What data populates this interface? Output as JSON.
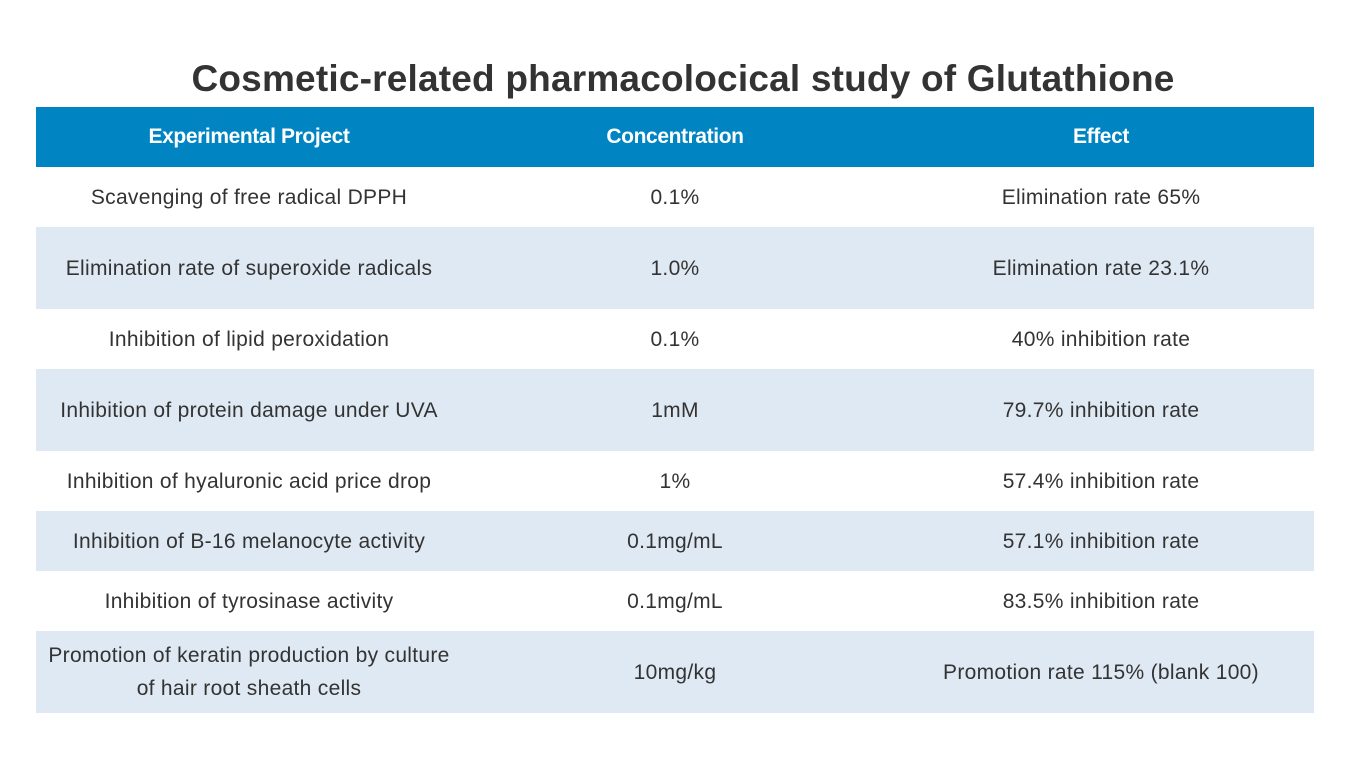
{
  "title": "Cosmetic-related pharmacolocical study of Glutathione",
  "table": {
    "headers": [
      "Experimental Project",
      "Concentration",
      "Effect"
    ],
    "rows": [
      [
        "Scavenging of free radical DPPH",
        "0.1%",
        "Elimination rate 65%"
      ],
      [
        "Elimination rate of superoxide radicals",
        "1.0%",
        "Elimination rate 23.1%"
      ],
      [
        "Inhibition of lipid peroxidation",
        "0.1%",
        "40% inhibition rate"
      ],
      [
        "Inhibition of protein damage under UVA",
        "1mM",
        "79.7% inhibition rate"
      ],
      [
        "Inhibition of hyaluronic acid price drop",
        "1%",
        "57.4% inhibition rate"
      ],
      [
        "Inhibition of B-16 melanocyte activity",
        "0.1mg/mL",
        "57.1% inhibition rate"
      ],
      [
        "Inhibition of tyrosinase activity",
        "0.1mg/mL",
        "83.5% inhibition rate"
      ],
      [
        "Promotion of keratin production by culture of hair root sheath cells",
        "10mg/kg",
        "Promotion rate 115% (blank 100)"
      ]
    ]
  },
  "colors": {
    "header_bg": "#0085c2",
    "header_text": "#ffffff",
    "stripe_bg": "#dfe9f3",
    "text": "#333333"
  }
}
